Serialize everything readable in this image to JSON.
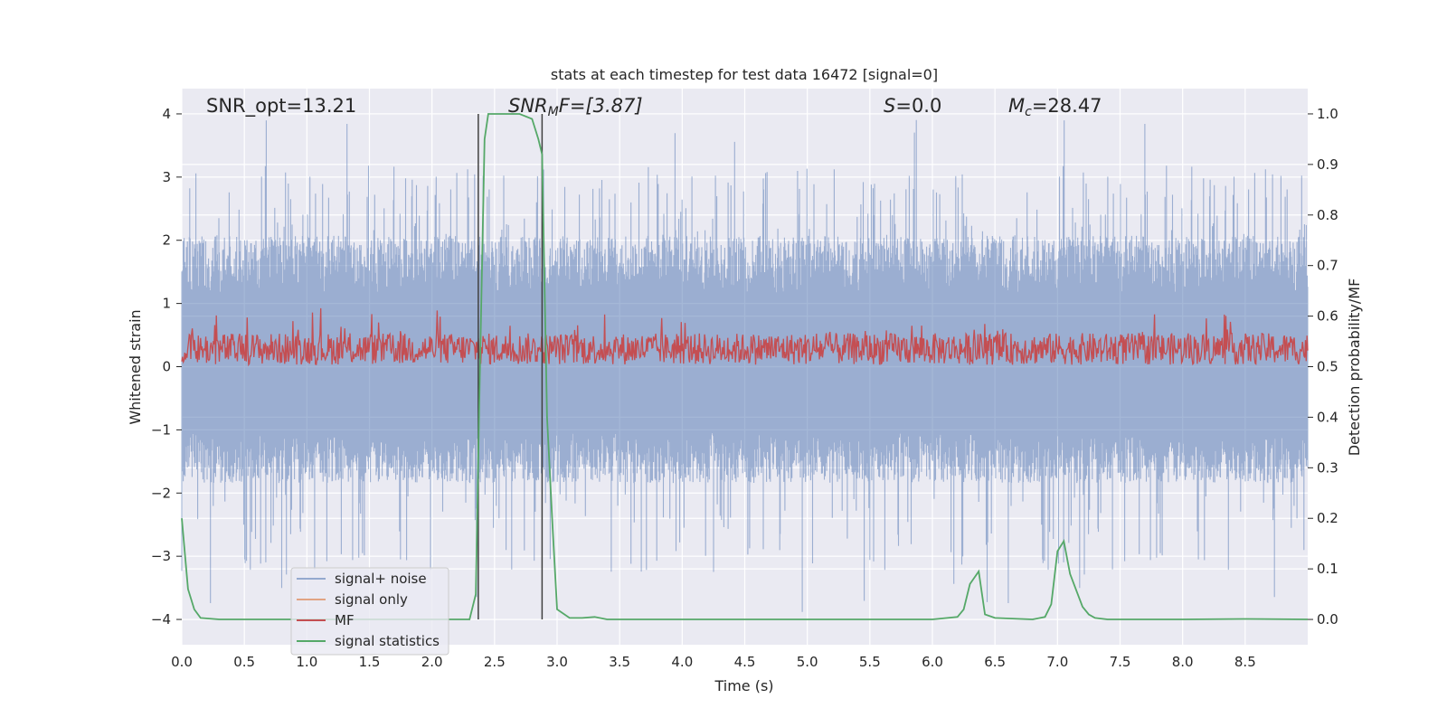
{
  "chart_data": {
    "type": "line",
    "title": "stats at each timestep for test data 16472 [signal=0]",
    "xlabel": "Time (s)",
    "ylabel": "Whitened strain",
    "y2label": "Detection probability/MF",
    "xlim": [
      0.0,
      9.0
    ],
    "ylim": [
      -4.4,
      4.4
    ],
    "y2lim": [
      -0.05,
      1.05
    ],
    "xticks": [
      "0.0",
      "0.5",
      "1.0",
      "1.5",
      "2.0",
      "2.5",
      "3.0",
      "3.5",
      "4.0",
      "4.5",
      "5.0",
      "5.5",
      "6.0",
      "6.5",
      "7.0",
      "7.5",
      "8.0",
      "8.5"
    ],
    "yticks": [
      "4",
      "3",
      "2",
      "1",
      "0",
      "−1",
      "−2",
      "−3",
      "−4"
    ],
    "y2ticks": [
      "1.0",
      "0.9",
      "0.8",
      "0.7",
      "0.6",
      "0.5",
      "0.4",
      "0.3",
      "0.2",
      "0.1",
      "0.0"
    ],
    "grid": true,
    "legend_position": "lower-left",
    "annotations": {
      "snr_opt": "SNR_opt=13.21",
      "snr_mf_main": "SNR",
      "snr_mf_sub": "M",
      "snr_mf_rest": "F=[3.87]",
      "s_main": "S",
      "s_rest": "=0.0",
      "mc_main": "M",
      "mc_sub": "c",
      "mc_rest": "=28.47"
    },
    "vertical_lines": [
      2.37,
      2.88
    ],
    "series": [
      {
        "name": "signal+ noise",
        "color": "#4c72b0",
        "axis": "left",
        "description_values": "noise band approx -1.6 to 1.8, spikes up to about 4.0 and down to about -3.9",
        "band": [
          -1.6,
          1.8
        ]
      },
      {
        "name": "signal only",
        "color": "#dd8452",
        "axis": "left",
        "values": []
      },
      {
        "name": "MF",
        "color": "#c44e52",
        "axis": "left",
        "band": [
          0.0,
          0.75
        ]
      },
      {
        "name": "signal statistics",
        "color": "#55a868",
        "axis": "right",
        "x": [
          0.0,
          0.05,
          0.1,
          0.15,
          0.3,
          0.5,
          1.0,
          1.5,
          2.0,
          2.3,
          2.35,
          2.38,
          2.42,
          2.45,
          2.5,
          2.6,
          2.7,
          2.8,
          2.85,
          2.88,
          2.92,
          2.96,
          3.0,
          3.1,
          3.2,
          3.3,
          3.4,
          3.5,
          4.0,
          5.0,
          6.0,
          6.2,
          6.25,
          6.3,
          6.37,
          6.42,
          6.5,
          6.8,
          6.9,
          6.95,
          7.0,
          7.05,
          7.1,
          7.2,
          7.25,
          7.3,
          7.4,
          7.5,
          8.0,
          8.5,
          9.0
        ],
        "values": [
          0.2,
          0.06,
          0.02,
          0.003,
          0.0,
          0.0,
          0.0,
          0.0,
          0.0,
          0.0,
          0.05,
          0.45,
          0.95,
          1.0,
          1.0,
          1.0,
          1.0,
          0.99,
          0.95,
          0.92,
          0.4,
          0.2,
          0.02,
          0.003,
          0.003,
          0.005,
          0.0,
          0.0,
          0.0,
          0.0,
          0.0,
          0.005,
          0.02,
          0.07,
          0.095,
          0.01,
          0.003,
          0.0,
          0.005,
          0.03,
          0.135,
          0.155,
          0.09,
          0.025,
          0.01,
          0.003,
          0.0,
          0.0,
          0.0,
          0.001,
          0.0
        ]
      }
    ]
  }
}
